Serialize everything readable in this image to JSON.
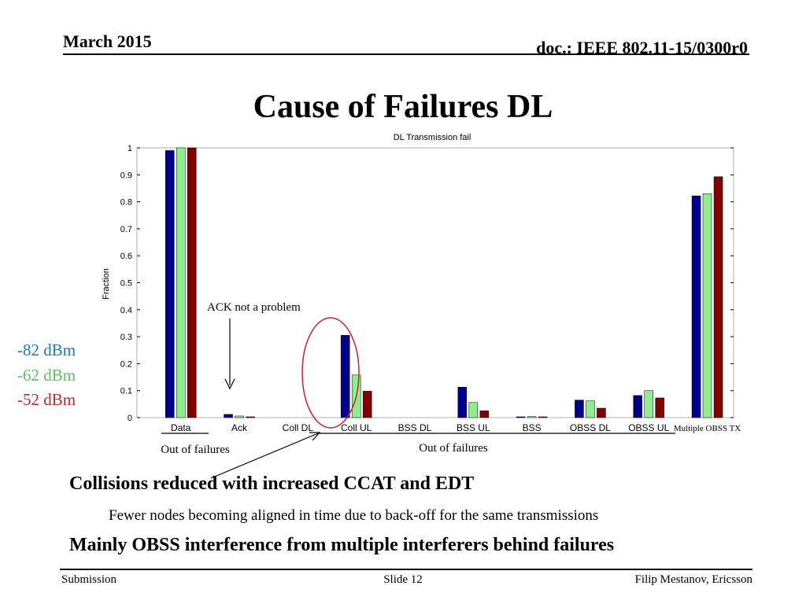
{
  "header": {
    "date": "March 2015",
    "doc": "doc.: IEEE 802.11-15/0300r0"
  },
  "slide_title": "Cause of Failures DL",
  "legend": [
    {
      "label": "-82 dBm",
      "color": "#1f78b4"
    },
    {
      "label": "-62 dBm",
      "color": "#5cc05c"
    },
    {
      "label": "-52 dBm",
      "color": "#c0262c"
    }
  ],
  "annotations": {
    "ack": "ACK not a problem",
    "out_left": "Out of failures",
    "out_right": "Out of failures"
  },
  "chart_data": {
    "type": "bar",
    "title": "DL Transmission fail",
    "xlabel": "",
    "ylabel": "Fraction",
    "ylim": [
      0,
      1
    ],
    "yticks": [
      "0",
      "0.1",
      "0.2",
      "0.3",
      "0.4",
      "0.5",
      "0.6",
      "0.7",
      "0.8",
      "0.9",
      "1"
    ],
    "categories": [
      "Data",
      "Ack",
      "Coll DL",
      "Coll UL",
      "BSS DL",
      "BSS UL",
      "BSS",
      "OBSS DL",
      "OBSS UL",
      "Multiple OBSS TX"
    ],
    "series": [
      {
        "color": "#00008b",
        "values": [
          0.99,
          0.012,
          0,
          0.305,
          0,
          0.113,
          0.003,
          0.065,
          0.082,
          0.822
        ]
      },
      {
        "color": "#90ee90",
        "values": [
          1.0,
          0.006,
          0,
          0.158,
          0,
          0.056,
          0.004,
          0.062,
          0.1,
          0.83
        ]
      },
      {
        "color": "#800000",
        "values": [
          1.0,
          0.003,
          0,
          0.098,
          0,
          0.025,
          0.003,
          0.035,
          0.073,
          0.893
        ]
      }
    ],
    "grid": false
  },
  "bullets": {
    "b1": "Collisions reduced with increased CCAT and EDT",
    "sub1": "Fewer nodes becoming aligned in time due to back-off for the same transmissions",
    "b2": "Mainly OBSS interference from multiple interferers behind failures"
  },
  "footer": {
    "left": "Submission",
    "center": "Slide 12",
    "right": "Filip Mestanov, Ericsson"
  }
}
